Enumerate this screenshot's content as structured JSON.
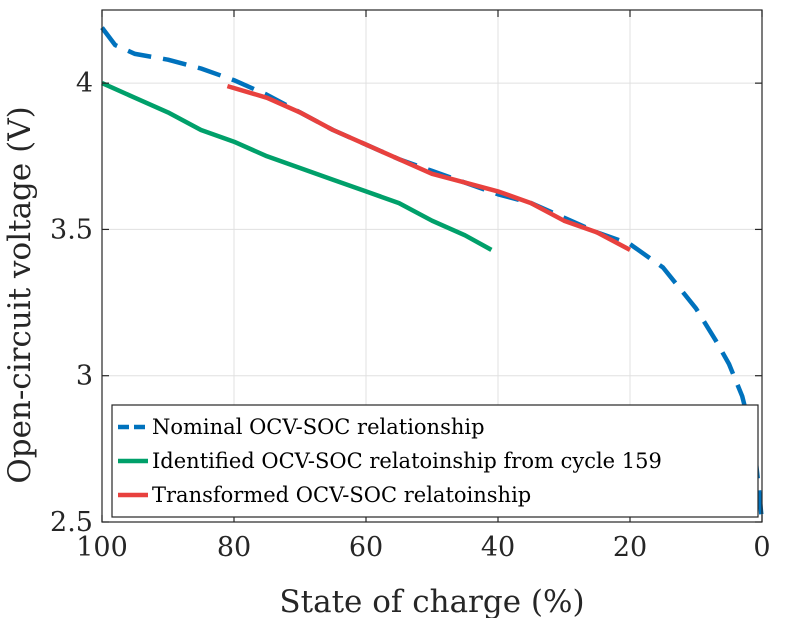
{
  "chart_data": {
    "type": "line",
    "title": "",
    "xlabel": "State of charge (%)",
    "ylabel": "Open-circuit voltage (V)",
    "xlim": [
      100,
      0
    ],
    "x_reversed": true,
    "ylim": [
      2.5,
      4.25
    ],
    "xticks": [
      100,
      80,
      60,
      40,
      20,
      0
    ],
    "yticks": [
      2.5,
      3,
      3.5,
      4
    ],
    "xtick_labels": [
      "100",
      "80",
      "60",
      "40",
      "20",
      "0"
    ],
    "ytick_labels": [
      "2.5",
      "3",
      "3.5",
      "4"
    ],
    "grid": true,
    "legend_position": "bottom",
    "series": [
      {
        "name": "Nominal OCV-SOC relationship",
        "color": "#0072BD",
        "style": "dashed",
        "x": [
          100,
          98,
          95,
          90,
          85,
          80,
          75,
          70,
          65,
          60,
          55,
          50,
          45,
          40,
          35,
          30,
          25,
          20,
          15,
          10,
          7,
          5,
          3,
          2,
          1,
          0.5,
          0
        ],
        "y": [
          4.19,
          4.13,
          4.1,
          4.08,
          4.05,
          4.01,
          3.96,
          3.9,
          3.84,
          3.79,
          3.74,
          3.7,
          3.66,
          3.62,
          3.59,
          3.54,
          3.49,
          3.45,
          3.37,
          3.23,
          3.12,
          3.04,
          2.93,
          2.84,
          2.72,
          2.62,
          2.5
        ]
      },
      {
        "name": "Identified OCV-SOC relatoinship from cycle 159",
        "color": "#00A06A",
        "style": "solid",
        "x": [
          100,
          95,
          90,
          85,
          80,
          75,
          70,
          65,
          60,
          55,
          50,
          45,
          41
        ],
        "y": [
          4.0,
          3.95,
          3.9,
          3.84,
          3.8,
          3.75,
          3.71,
          3.67,
          3.63,
          3.59,
          3.53,
          3.48,
          3.43
        ]
      },
      {
        "name": "Transformed OCV-SOC relatoinship",
        "color": "#E8413E",
        "style": "solid",
        "x": [
          81,
          75,
          70,
          65,
          60,
          55,
          50,
          45,
          40,
          35,
          30,
          25,
          20
        ],
        "y": [
          3.99,
          3.95,
          3.9,
          3.84,
          3.79,
          3.74,
          3.69,
          3.66,
          3.63,
          3.59,
          3.53,
          3.49,
          3.43
        ]
      }
    ]
  }
}
